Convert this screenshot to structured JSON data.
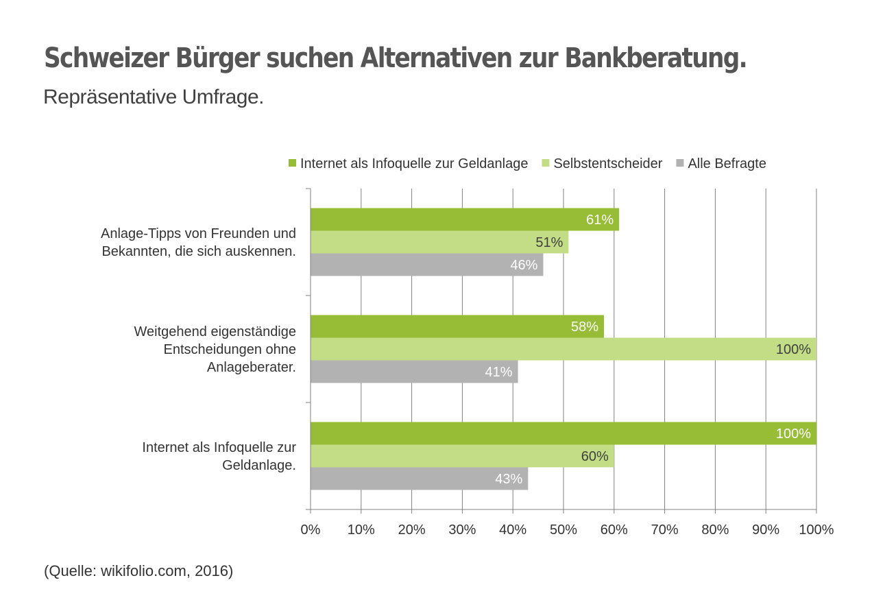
{
  "header": {
    "title": "Schweizer Bürger suchen Alternativen zur Bankberatung.",
    "subtitle": "Repräsentative Umfrage."
  },
  "source": "(Quelle: wikifolio.com, 2016)",
  "chart_data": {
    "type": "bar",
    "orientation": "horizontal",
    "title": "",
    "xlabel": "",
    "ylabel": "",
    "xlim": [
      0,
      100
    ],
    "x_ticks": [
      "0%",
      "10%",
      "20%",
      "30%",
      "40%",
      "50%",
      "60%",
      "70%",
      "80%",
      "90%",
      "100%"
    ],
    "grid": true,
    "legend_position": "top",
    "categories": [
      [
        "Anlage-Tipps von Freunden und",
        "Bekannten, die sich auskennen."
      ],
      [
        "Weitgehend eigenständige",
        "Entscheidungen ohne",
        "Anlageberater."
      ],
      [
        "Internet als Infoquelle zur",
        "Geldanlage."
      ]
    ],
    "series": [
      {
        "name": "Internet als Infoquelle zur Geldanlage",
        "color": "#96bd35",
        "label_color": "#ffffff",
        "values": [
          61,
          58,
          100
        ],
        "labels": [
          "61%",
          "58%",
          "100%"
        ]
      },
      {
        "name": "Selbstentscheider",
        "color": "#c2dd85",
        "label_color": "#404040",
        "values": [
          51,
          100,
          60
        ],
        "labels": [
          "51%",
          "100%",
          "60%"
        ]
      },
      {
        "name": "Alle Befragte",
        "color": "#b2b2b2",
        "label_color": "#ffffff",
        "values": [
          46,
          41,
          43
        ],
        "labels": [
          "46%",
          "41%",
          "43%"
        ]
      }
    ]
  }
}
